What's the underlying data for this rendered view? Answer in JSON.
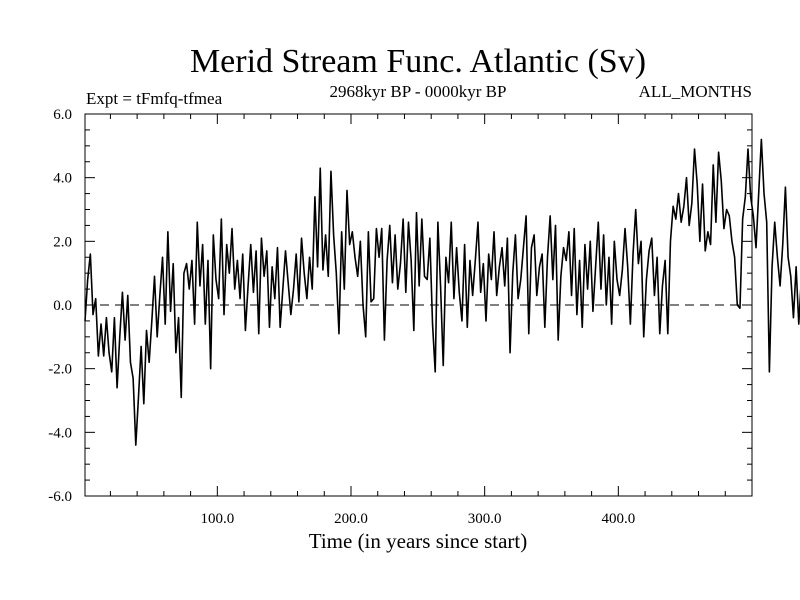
{
  "chart_data": {
    "type": "line",
    "title": "Merid Stream Func. Atlantic (Sv)",
    "experiment_label": "Expt = tFmfq-tfmea",
    "period_label": "2968kyr BP - 0000kyr BP",
    "season_label": "ALL_MONTHS",
    "xlabel": "Time (in years since start)",
    "ylabel": "",
    "xlim": [
      1,
      500
    ],
    "ylim": [
      -6,
      6
    ],
    "x_ticks": [
      {
        "value": 100,
        "label": "100.0"
      },
      {
        "value": 200,
        "label": "200.0"
      },
      {
        "value": 300,
        "label": "300.0"
      },
      {
        "value": 400,
        "label": "400.0"
      }
    ],
    "y_ticks": [
      {
        "value": 6,
        "label": "6.0"
      },
      {
        "value": 4,
        "label": "4.0"
      },
      {
        "value": 2,
        "label": "2.0"
      },
      {
        "value": 0,
        "label": "0.0"
      },
      {
        "value": -2,
        "label": "-2.0"
      },
      {
        "value": -4,
        "label": "-4.0"
      },
      {
        "value": -6,
        "label": "-6.0"
      }
    ],
    "reference_line": {
      "y": 0,
      "style": "dashed"
    },
    "series": [
      {
        "name": "tFmfq-tfmea",
        "x_start": 1,
        "x_step": 2,
        "values": [
          -0.5,
          0.8,
          1.6,
          -0.3,
          0.2,
          -1.6,
          -0.6,
          -1.6,
          -0.4,
          -1.5,
          -2.1,
          -0.4,
          -2.6,
          -1.0,
          0.4,
          -1.1,
          0.3,
          -1.8,
          -2.3,
          -4.4,
          -2.9,
          -1.3,
          -3.1,
          -0.8,
          -1.8,
          -0.5,
          0.9,
          -1.0,
          0.3,
          1.5,
          -0.6,
          2.3,
          -0.2,
          1.3,
          -1.5,
          -0.4,
          -2.9,
          1.0,
          1.3,
          0.5,
          1.4,
          -0.6,
          2.6,
          0.6,
          1.9,
          -0.6,
          1.4,
          -2.0,
          2.2,
          0.8,
          0.2,
          2.7,
          -0.3,
          1.9,
          1.0,
          2.4,
          0.5,
          1.4,
          0.2,
          1.6,
          -0.8,
          0.6,
          1.9,
          0.4,
          1.7,
          -0.9,
          2.1,
          0.9,
          1.7,
          -0.7,
          1.2,
          0.2,
          1.8,
          -0.7,
          0.5,
          1.7,
          0.7,
          -0.3,
          0.5,
          1.6,
          0.1,
          2.1,
          1.0,
          0.2,
          1.5,
          0.5,
          3.4,
          1.2,
          4.3,
          1.1,
          2.2,
          0.9,
          4.2,
          2.2,
          1.0,
          -0.9,
          2.3,
          0.5,
          3.6,
          1.9,
          2.3,
          1.5,
          0.9,
          2.0,
          0.0,
          -1.0,
          2.3,
          0.1,
          0.2,
          2.4,
          1.5,
          2.4,
          -1.1,
          1.4,
          2.5,
          0.7,
          2.2,
          0.5,
          1.3,
          2.7,
          0.4,
          2.6,
          1.4,
          -0.8,
          2.9,
          0.6,
          2.7,
          0.9,
          0.8,
          2.1,
          -0.6,
          -2.1,
          2.6,
          0.6,
          -1.9,
          1.5,
          0.7,
          2.6,
          0.2,
          1.8,
          0.4,
          -0.5,
          1.9,
          -0.7,
          1.4,
          0.3,
          1.4,
          2.6,
          0.4,
          1.3,
          -0.5,
          1.6,
          0.8,
          2.3,
          0.3,
          1.2,
          1.8,
          0.6,
          2.1,
          -1.5,
          1.0,
          2.2,
          0.2,
          0.8,
          1.8,
          2.8,
          -0.9,
          1.8,
          2.2,
          0.3,
          1.2,
          1.6,
          -0.7,
          1.5,
          2.8,
          0.8,
          2.5,
          -1.1,
          0.9,
          1.8,
          1.4,
          2.3,
          0.3,
          2.4,
          -0.3,
          1.4,
          -0.7,
          1.9,
          0.5,
          2.0,
          -0.2,
          1.2,
          2.6,
          0.5,
          2.2,
          0.0,
          1.5,
          -0.6,
          2.0,
          0.8,
          0.3,
          1.1,
          2.4,
          1.2,
          -0.6,
          1.6,
          3.0,
          1.3,
          2.0,
          -1.0,
          0.8,
          1.7,
          2.1,
          0.3,
          1.5,
          -0.9,
          0.6,
          1.4,
          -0.9,
          2.0,
          3.1,
          2.7,
          3.5,
          2.6,
          3.1,
          4.0,
          2.5,
          3.2,
          4.9,
          3.8,
          2.0,
          3.8,
          1.7,
          2.3,
          1.9,
          4.4,
          2.6,
          4.8,
          3.9,
          2.4,
          3.0,
          2.8,
          2.0,
          1.5,
          0.0,
          -0.1,
          2.7,
          3.4,
          4.9,
          3.4,
          2.8,
          1.8,
          3.5,
          5.2,
          3.5,
          2.6,
          -2.1,
          1.2,
          2.6,
          1.5,
          0.6,
          1.9,
          3.7,
          1.5,
          0.9,
          -0.4,
          1.2,
          -0.6,
          0.9,
          -0.2,
          0.7,
          -1.5,
          0.3,
          -1.1,
          0.6,
          0.9,
          -0.2,
          1.3,
          0.2,
          1.8,
          0.3,
          0.8,
          0.2,
          -1.1,
          0.2,
          -1.6,
          0.4,
          -1.2,
          -0.5,
          0.1,
          -1.0,
          0.6,
          -0.9,
          1.2,
          -0.2,
          0.3,
          0.6,
          -0.6,
          -1.2,
          0.8,
          0.9,
          1.4,
          0.5,
          1.6,
          -0.8,
          1.0,
          0.7,
          0.8,
          0.3,
          -0.3,
          1.1,
          2.2,
          1.5,
          3.2,
          1.1,
          2.6,
          1.8
        ]
      }
    ]
  }
}
